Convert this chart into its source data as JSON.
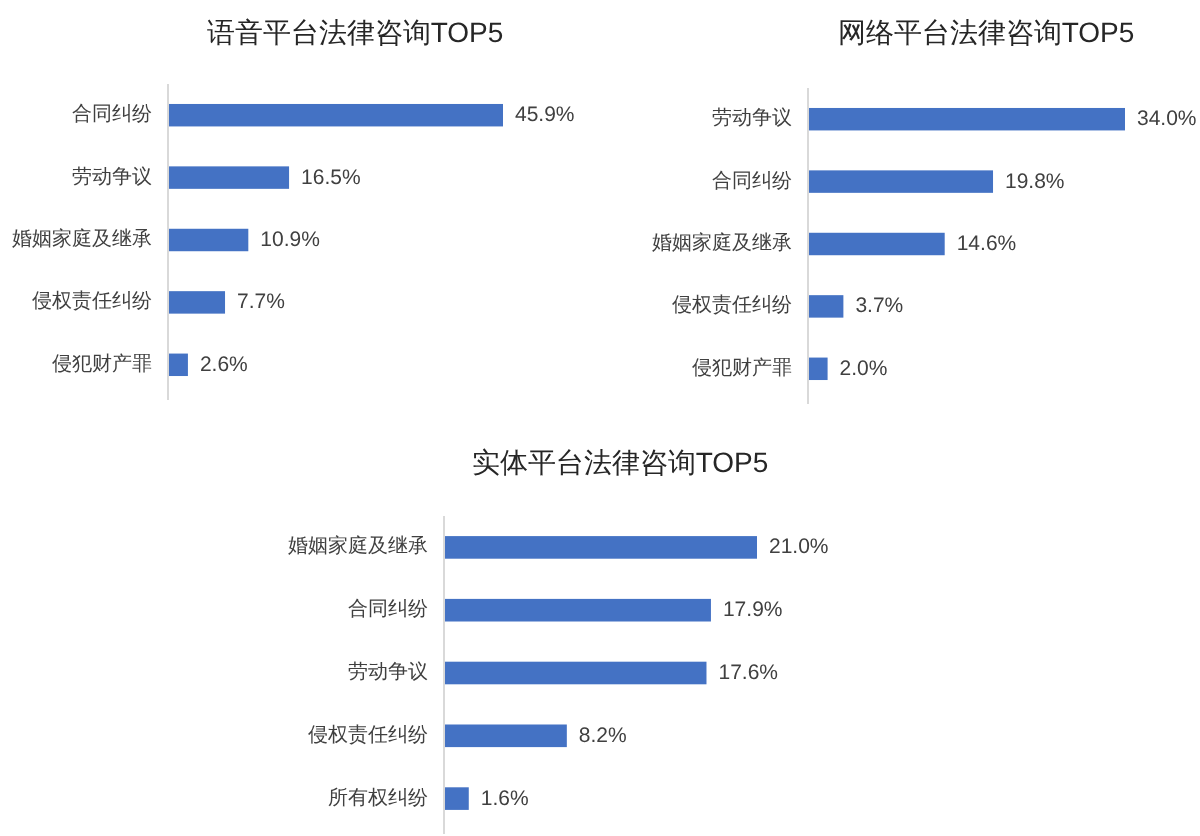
{
  "chart_data": [
    {
      "type": "bar",
      "orientation": "horizontal",
      "title": "语音平台法律咨询TOP5",
      "categories": [
        "合同纠纷",
        "劳动争议",
        "婚姻家庭及继承",
        "侵权责任纠纷",
        "侵犯财产罪"
      ],
      "values": [
        45.9,
        16.5,
        10.9,
        7.7,
        2.6
      ],
      "value_labels": [
        "45.9%",
        "16.5%",
        "10.9%",
        "7.7%",
        "2.6%"
      ],
      "color": "#4472c4"
    },
    {
      "type": "bar",
      "orientation": "horizontal",
      "title": "网络平台法律咨询TOP5",
      "categories": [
        "劳动争议",
        "合同纠纷",
        "婚姻家庭及继承",
        "侵权责任纠纷",
        "侵犯财产罪"
      ],
      "values": [
        34.0,
        19.8,
        14.6,
        3.7,
        2.0
      ],
      "value_labels": [
        "34.0%",
        "19.8%",
        "14.6%",
        "3.7%",
        "2.0%"
      ],
      "color": "#4472c4"
    },
    {
      "type": "bar",
      "orientation": "horizontal",
      "title": "实体平台法律咨询TOP5",
      "categories": [
        "婚姻家庭及继承",
        "合同纠纷",
        "劳动争议",
        "侵权责任纠纷",
        "所有权纠纷"
      ],
      "values": [
        21.0,
        17.9,
        17.6,
        8.2,
        1.6
      ],
      "value_labels": [
        "21.0%",
        "17.9%",
        "17.6%",
        "8.2%",
        "1.6%"
      ],
      "color": "#4472c4"
    }
  ]
}
